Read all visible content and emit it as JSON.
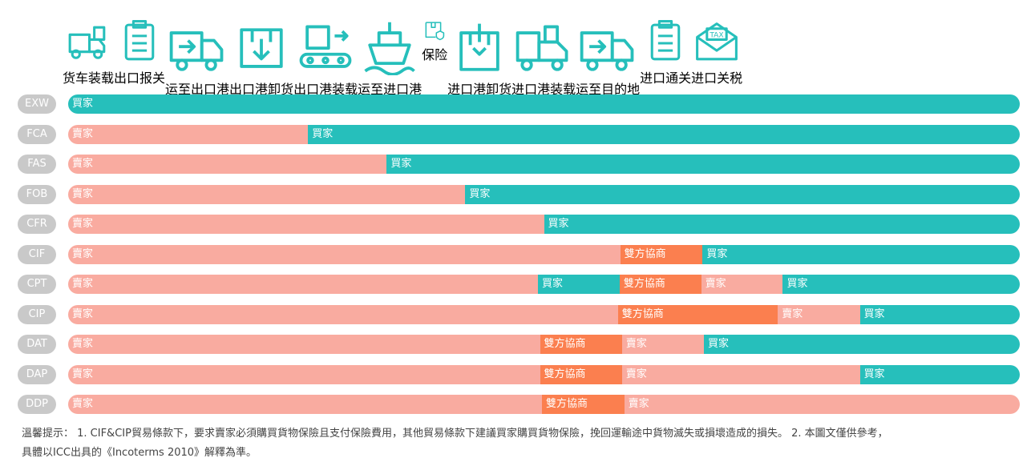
{
  "stages": [
    "货车装载",
    "出口报关",
    "运至出口港",
    "出口港卸货",
    "出口港装载",
    "运至进口港",
    "保险",
    "进口港卸货",
    "进口港装载",
    "运至目的地",
    "进口通关",
    "进口关税"
  ],
  "rows": [
    {
      "term": "EXW",
      "segments": [
        {
          "label": "買家",
          "span": 12,
          "color": "#26bfbb"
        }
      ]
    },
    {
      "term": "FCA",
      "segments": [
        {
          "label": "賣家",
          "span": 3,
          "color": "#f9aba0"
        },
        {
          "label": "買家",
          "span": 9,
          "color": "#26bfbb"
        }
      ]
    },
    {
      "term": "FAS",
      "segments": [
        {
          "label": "賣家",
          "span": 4,
          "color": "#f9aba0"
        },
        {
          "label": "買家",
          "span": 8,
          "color": "#26bfbb"
        }
      ]
    },
    {
      "term": "FOB",
      "segments": [
        {
          "label": "賣家",
          "span": 5,
          "color": "#f9aba0"
        },
        {
          "label": "買家",
          "span": 7,
          "color": "#26bfbb"
        }
      ]
    },
    {
      "term": "CFR",
      "segments": [
        {
          "label": "賣家",
          "span": 6,
          "color": "#f9aba0"
        },
        {
          "label": "買家",
          "span": 6,
          "color": "#26bfbb"
        }
      ]
    },
    {
      "term": "CIF",
      "segments": [
        {
          "label": "賣家",
          "span": 7,
          "color": "#f9aba0"
        },
        {
          "label": "雙方協商",
          "span": 1,
          "color": "#fb7f4f"
        },
        {
          "label": "買家",
          "span": 4,
          "color": "#26bfbb"
        }
      ]
    },
    {
      "term": "CPT",
      "segments": [
        {
          "label": "賣家",
          "span": 6,
          "color": "#f9aba0"
        },
        {
          "label": "買家",
          "span": 1,
          "color": "#26bfbb"
        },
        {
          "label": "雙方協商",
          "span": 1,
          "color": "#fb7f4f"
        },
        {
          "label": "賣家",
          "span": 1,
          "color": "#f9aba0"
        },
        {
          "label": "買家",
          "span": 3,
          "color": "#26bfbb"
        }
      ]
    },
    {
      "term": "CIP",
      "segments": [
        {
          "label": "賣家",
          "span": 7,
          "color": "#f9aba0"
        },
        {
          "label": "雙方協商",
          "span": 2,
          "color": "#fb7f4f"
        },
        {
          "label": "賣家",
          "span": 1,
          "color": "#f9aba0"
        },
        {
          "label": "買家",
          "span": 2,
          "color": "#26bfbb"
        }
      ]
    },
    {
      "term": "DAT",
      "segments": [
        {
          "label": "賣家",
          "span": 6,
          "color": "#f9aba0"
        },
        {
          "label": "雙方協商",
          "span": 1,
          "color": "#fb7f4f"
        },
        {
          "label": "賣家",
          "span": 1,
          "color": "#f9aba0"
        },
        {
          "label": "買家",
          "span": 4,
          "color": "#26bfbb"
        }
      ]
    },
    {
      "term": "DAP",
      "segments": [
        {
          "label": "賣家",
          "span": 6,
          "color": "#f9aba0"
        },
        {
          "label": "雙方協商",
          "span": 1,
          "color": "#fb7f4f"
        },
        {
          "label": "賣家",
          "span": 3,
          "color": "#f9aba0"
        },
        {
          "label": "買家",
          "span": 2,
          "color": "#26bfbb"
        }
      ]
    },
    {
      "term": "DDP",
      "segments": [
        {
          "label": "賣家",
          "span": 6,
          "color": "#f9aba0"
        },
        {
          "label": "雙方協商",
          "span": 1,
          "color": "#fb7f4f"
        },
        {
          "label": "賣家",
          "span": 5,
          "color": "#f9aba0"
        }
      ]
    }
  ],
  "footnote": [
    "溫馨提示： 1. CIF&CIP貿易條款下，要求賣家必須購買貨物保險且支付保險費用，其他貿易條款下建議買家購買貨物保險，挽回運輸途中貨物滅失或損壞造成的損失。 2. 本圖文僅供參考，",
    "具體以ICC出具的《Incoterms 2010》解釋為準。"
  ]
}
